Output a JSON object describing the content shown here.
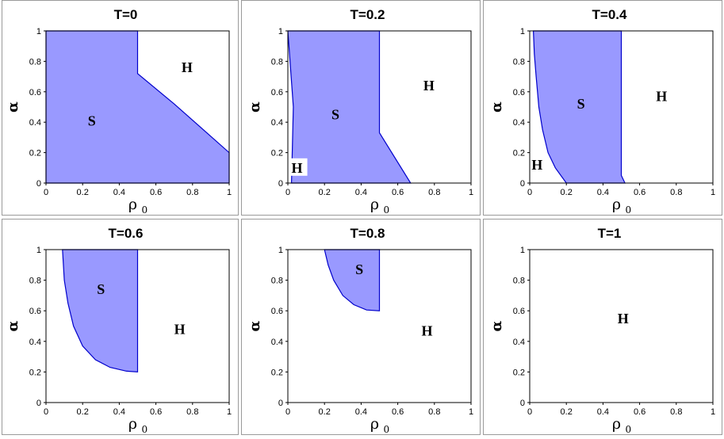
{
  "colors": {
    "fill": "#9999ff",
    "edge": "#0000cc",
    "frame": "#000000"
  },
  "axes": {
    "x_label": "ρ",
    "x_label_sub": "0",
    "y_label": "α"
  },
  "chart_data": [
    {
      "type": "area",
      "title": "T=0",
      "xlim": [
        0,
        1
      ],
      "ylim": [
        0,
        1
      ],
      "xticks": [
        "0",
        "0.2",
        "0.4",
        "0.6",
        "0.8",
        "1"
      ],
      "yticks": [
        "0",
        "0.2",
        "0.4",
        "0.6",
        "0.8",
        "1"
      ],
      "regions": [
        {
          "label": "S",
          "label_at": [
            0.25,
            0.41
          ],
          "boundary": [
            [
              0,
              0
            ],
            [
              0,
              1
            ],
            [
              0.5,
              1
            ],
            [
              0.5,
              0.72
            ],
            [
              0.7,
              0.52
            ],
            [
              1,
              0.2
            ],
            [
              1,
              0
            ]
          ]
        },
        {
          "label": "H",
          "label_at": [
            0.77,
            0.76
          ],
          "boundary": []
        }
      ]
    },
    {
      "type": "area",
      "title": "T=0.2",
      "xlim": [
        0,
        1
      ],
      "ylim": [
        0,
        1
      ],
      "xticks": [
        "0",
        "0.2",
        "0.4",
        "0.6",
        "0.8",
        "1"
      ],
      "yticks": [
        "0",
        "0.2",
        "0.4",
        "0.6",
        "0.8",
        "1"
      ],
      "regions": [
        {
          "label": "S",
          "label_at": [
            0.26,
            0.45
          ],
          "boundary": [
            [
              0,
              1
            ],
            [
              0.5,
              1
            ],
            [
              0.5,
              0.33
            ],
            [
              0.67,
              0
            ],
            [
              0.02,
              0
            ],
            [
              0.03,
              0.5
            ]
          ]
        },
        {
          "label": "H",
          "label_at": [
            0.77,
            0.64
          ],
          "boundary": []
        },
        {
          "label": "H",
          "label_at": [
            0.05,
            0.1
          ],
          "boundary": []
        }
      ]
    },
    {
      "type": "area",
      "title": "T=0.4",
      "xlim": [
        0,
        1
      ],
      "ylim": [
        0,
        1
      ],
      "xticks": [
        "0",
        "0.2",
        "0.4",
        "0.6",
        "0.8",
        "1"
      ],
      "yticks": [
        "0",
        "0.2",
        "0.4",
        "0.6",
        "0.8",
        "1"
      ],
      "regions": [
        {
          "label": "S",
          "label_at": [
            0.28,
            0.52
          ],
          "boundary": [
            [
              0.02,
              1
            ],
            [
              0.5,
              1
            ],
            [
              0.5,
              0.05
            ],
            [
              0.52,
              0
            ],
            [
              0.2,
              0
            ],
            [
              0.14,
              0.1
            ],
            [
              0.1,
              0.2
            ],
            [
              0.07,
              0.35
            ],
            [
              0.05,
              0.5
            ],
            [
              0.035,
              0.7
            ],
            [
              0.025,
              0.85
            ]
          ]
        },
        {
          "label": "H",
          "label_at": [
            0.72,
            0.57
          ],
          "boundary": []
        },
        {
          "label": "H",
          "label_at": [
            0.04,
            0.12
          ],
          "boundary": []
        }
      ]
    },
    {
      "type": "area",
      "title": "T=0.6",
      "xlim": [
        0,
        1
      ],
      "ylim": [
        0,
        1
      ],
      "xticks": [
        "0",
        "0.2",
        "0.4",
        "0.6",
        "0.8",
        "1"
      ],
      "yticks": [
        "0",
        "0.2",
        "0.4",
        "0.6",
        "0.8",
        "1"
      ],
      "regions": [
        {
          "label": "S",
          "label_at": [
            0.3,
            0.74
          ],
          "boundary": [
            [
              0.09,
              1
            ],
            [
              0.5,
              1
            ],
            [
              0.5,
              0.2
            ],
            [
              0.44,
              0.205
            ],
            [
              0.35,
              0.23
            ],
            [
              0.27,
              0.28
            ],
            [
              0.2,
              0.37
            ],
            [
              0.15,
              0.5
            ],
            [
              0.12,
              0.65
            ],
            [
              0.1,
              0.8
            ]
          ]
        },
        {
          "label": "H",
          "label_at": [
            0.73,
            0.48
          ],
          "boundary": []
        }
      ]
    },
    {
      "type": "area",
      "title": "T=0.8",
      "xlim": [
        0,
        1
      ],
      "ylim": [
        0,
        1
      ],
      "xticks": [
        "0",
        "0.2",
        "0.4",
        "0.6",
        "0.8",
        "1"
      ],
      "yticks": [
        "0",
        "0.2",
        "0.4",
        "0.6",
        "0.8",
        "1"
      ],
      "regions": [
        {
          "label": "S",
          "label_at": [
            0.39,
            0.87
          ],
          "boundary": [
            [
              0.2,
              1
            ],
            [
              0.5,
              1
            ],
            [
              0.5,
              0.6
            ],
            [
              0.43,
              0.605
            ],
            [
              0.36,
              0.64
            ],
            [
              0.3,
              0.7
            ],
            [
              0.25,
              0.8
            ],
            [
              0.22,
              0.9
            ]
          ]
        },
        {
          "label": "H",
          "label_at": [
            0.76,
            0.47
          ],
          "boundary": []
        }
      ]
    },
    {
      "type": "area",
      "title": "T=1",
      "xlim": [
        0,
        1
      ],
      "ylim": [
        0,
        1
      ],
      "xticks": [
        "0",
        "0.2",
        "0.4",
        "0.6",
        "0.8",
        "1"
      ],
      "yticks": [
        "0",
        "0.2",
        "0.4",
        "0.6",
        "0.8",
        "1"
      ],
      "regions": [
        {
          "label": "H",
          "label_at": [
            0.51,
            0.55
          ],
          "boundary": []
        }
      ]
    }
  ]
}
